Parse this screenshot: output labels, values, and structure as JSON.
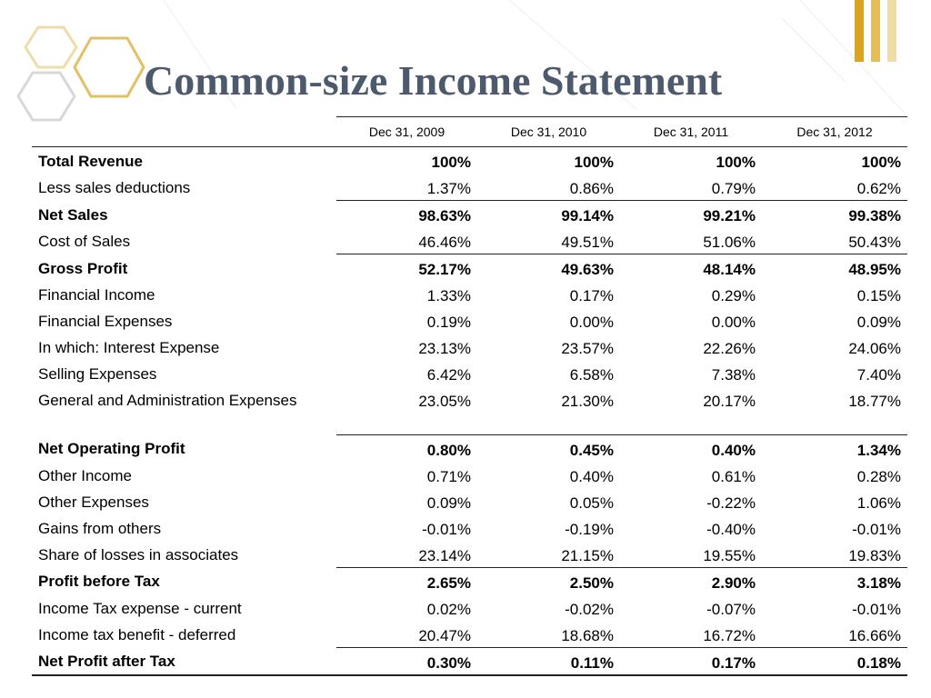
{
  "title": "Common-size Income Statement",
  "table": {
    "columns": [
      "Dec 31, 2009",
      "Dec 31, 2010",
      "Dec 31, 2011",
      "Dec 31, 2012"
    ],
    "rows": [
      [
        "Total Revenue",
        "100%",
        "100%",
        "100%",
        "100%"
      ],
      [
        "Less sales deductions",
        "1.37%",
        "0.86%",
        "0.79%",
        "0.62%"
      ],
      [
        "Net Sales",
        "98.63%",
        "99.14%",
        "99.21%",
        "99.38%"
      ],
      [
        "Cost of Sales",
        "46.46%",
        "49.51%",
        "51.06%",
        "50.43%"
      ],
      [
        "Gross Profit",
        "52.17%",
        "49.63%",
        "48.14%",
        "48.95%"
      ],
      [
        "Financial Income",
        "1.33%",
        "0.17%",
        "0.29%",
        "0.15%"
      ],
      [
        "Financial Expenses",
        "0.19%",
        "0.00%",
        "0.00%",
        "0.09%"
      ],
      [
        "In which: Interest Expense",
        "23.13%",
        "23.57%",
        "22.26%",
        "24.06%"
      ],
      [
        "Selling Expenses",
        "6.42%",
        "6.58%",
        "7.38%",
        "7.40%"
      ],
      [
        "General and Administration Expenses",
        "23.05%",
        "21.30%",
        "20.17%",
        "18.77%"
      ],
      [
        "Net Operating Profit",
        "0.80%",
        "0.45%",
        "0.40%",
        "1.34%"
      ],
      [
        "Other Income",
        "0.71%",
        "0.40%",
        "0.61%",
        "0.28%"
      ],
      [
        "Other Expenses",
        "0.09%",
        "0.05%",
        "-0.22%",
        "1.06%"
      ],
      [
        "Gains from others",
        "-0.01%",
        "-0.19%",
        "-0.40%",
        "-0.01%"
      ],
      [
        "Share of losses in associates",
        "23.14%",
        "21.15%",
        "19.55%",
        "19.83%"
      ],
      [
        "Profit before Tax",
        "2.65%",
        "2.50%",
        "2.90%",
        "3.18%"
      ],
      [
        "Income Tax expense - current",
        "0.02%",
        "-0.02%",
        "-0.07%",
        "-0.01%"
      ],
      [
        "Income tax benefit - deferred",
        "20.47%",
        "18.68%",
        "16.72%",
        "16.66%"
      ],
      [
        "Net Profit after Tax",
        "0.30%",
        "0.11%",
        "0.17%",
        "0.18%"
      ]
    ]
  }
}
